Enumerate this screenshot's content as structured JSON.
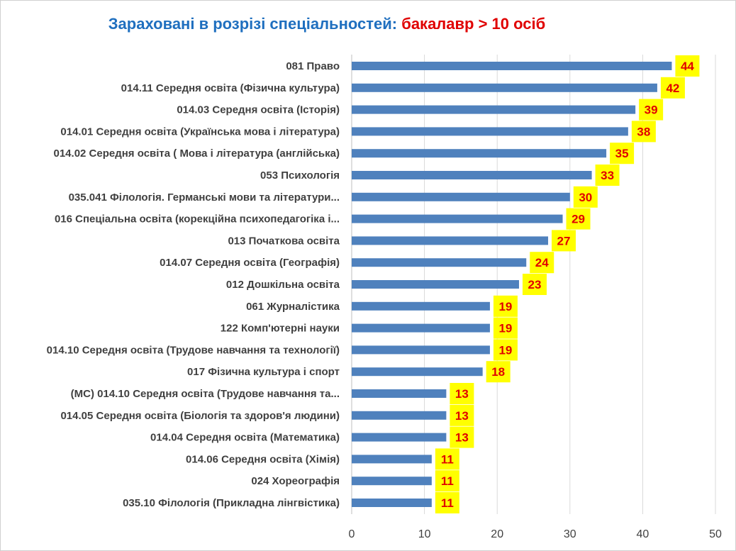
{
  "chart_data": {
    "type": "bar",
    "orientation": "horizontal",
    "title": "Зараховані в розрізі спеціальностей:",
    "title_highlight": "бакалавр  > 10 осіб",
    "categories": [
      "081 Право",
      "014.11 Середня освіта (Фізична культура)",
      "014.03 Середня освіта (Історія)",
      "014.01 Середня освіта (Українська мова і література)",
      "014.02 Середня освіта ( Мова і література (англійська)",
      "053 Психологія",
      "035.041 Філологія. Германські мови та літератури...",
      "016 Спеціальна освіта (корекційна психопедагогіка і...",
      "013 Початкова освіта",
      "014.07 Середня освіта (Географія)",
      "012 Дошкільна освіта",
      "061 Журналістика",
      "122 Комп'ютерні науки",
      "014.10 Середня освіта (Трудове навчання та технології)",
      "017 Фізична культура і спорт",
      "(МС) 014.10 Середня освіта (Трудове навчання та...",
      "014.05 Середня освіта (Біологія та здоров'я людини)",
      "014.04 Середня освіта (Математика)",
      "014.06 Середня освіта (Хімія)",
      "024 Хореографія",
      "035.10 Філологія (Прикладна лінгвістика)"
    ],
    "values": [
      44,
      42,
      39,
      38,
      35,
      33,
      30,
      29,
      27,
      24,
      23,
      19,
      19,
      19,
      18,
      13,
      13,
      13,
      11,
      11,
      11
    ],
    "xlim": [
      0,
      50
    ],
    "xticks": [
      0,
      10,
      20,
      30,
      40,
      50
    ],
    "grid": true,
    "colors": {
      "bar": "#4f81bd",
      "label_bg": "#ffff00",
      "label_text": "#e00000",
      "title_main": "#1f6fbf",
      "title_highlight": "#e00000"
    }
  }
}
